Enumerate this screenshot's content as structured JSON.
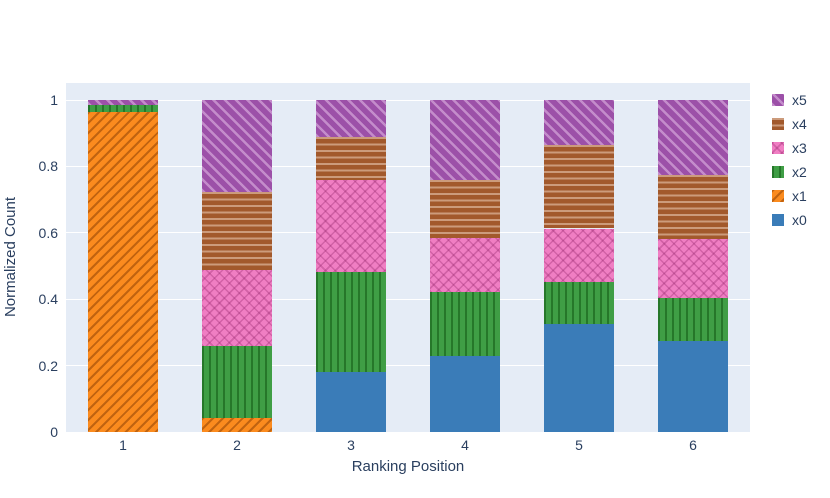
{
  "chart": {
    "plot_background": "#e5ecf6",
    "grid_color": "#ffffff",
    "font_color": "#2a3f5f",
    "page_background": "#ffffff"
  },
  "chart_data": {
    "type": "bar",
    "mode": "stacked-normalized",
    "title": "",
    "xlabel": "Ranking Position",
    "ylabel": "Normalized Count",
    "categories": [
      "1",
      "2",
      "3",
      "4",
      "5",
      "6"
    ],
    "y_ticks": [
      "0",
      "0.2",
      "0.4",
      "0.6",
      "0.8",
      "1"
    ],
    "y_tick_values": [
      0,
      0.2,
      0.4,
      0.6,
      0.8,
      1
    ],
    "ylim": [
      0,
      1.05
    ],
    "grid": true,
    "legend_position": "right-top",
    "legend_order_top_to_bottom": [
      "x5",
      "x4",
      "x3",
      "x2",
      "x1",
      "x0"
    ],
    "series": [
      {
        "name": "x0",
        "color": "#3a7cb8",
        "pattern": "solid",
        "values": [
          0,
          0,
          0.18,
          0.229,
          0.324,
          0.273
        ]
      },
      {
        "name": "x1",
        "color": "#fb8b1e",
        "pattern": "diagonal-up",
        "values": [
          0.963,
          0.041,
          0,
          0,
          0,
          0
        ]
      },
      {
        "name": "x2",
        "color": "#3f9e45",
        "pattern": "vertical",
        "values": [
          0.021,
          0.219,
          0.303,
          0.194,
          0.129,
          0.132
        ]
      },
      {
        "name": "x3",
        "color": "#f07ec3",
        "pattern": "cross-diagonal",
        "values": [
          0,
          0.228,
          0.276,
          0.16,
          0.16,
          0.176
        ]
      },
      {
        "name": "x4",
        "color": "#a2592c",
        "pattern": "horizontal",
        "values": [
          0,
          0.235,
          0.13,
          0.176,
          0.251,
          0.192
        ]
      },
      {
        "name": "x5",
        "color": "#9c50a8",
        "pattern": "diagonal-down",
        "values": [
          0.016,
          0.277,
          0.111,
          0.241,
          0.136,
          0.227
        ]
      }
    ]
  }
}
